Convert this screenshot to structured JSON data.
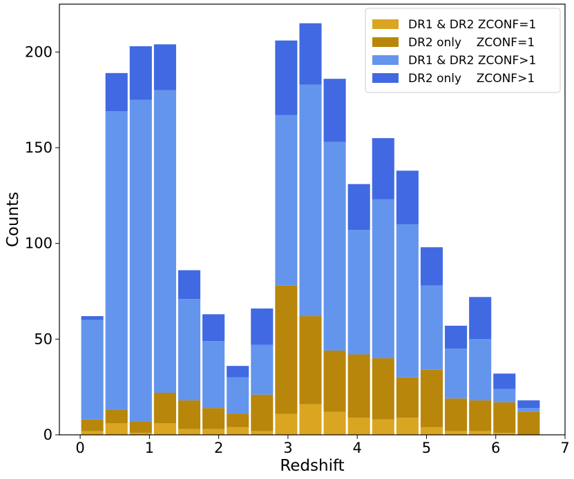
{
  "chart_data": {
    "type": "bar",
    "stacked": true,
    "xlabel": "Redshift",
    "ylabel": "Counts",
    "xlim": [
      -0.3,
      7
    ],
    "ylim": [
      0,
      225
    ],
    "xticks": [
      0,
      1,
      2,
      3,
      4,
      5,
      6,
      7
    ],
    "yticks": [
      0,
      50,
      100,
      150,
      200
    ],
    "bin_width": 0.35,
    "bin_starts": [
      0.0,
      0.35,
      0.7,
      1.05,
      1.4,
      1.75,
      2.1,
      2.45,
      2.8,
      3.15,
      3.5,
      3.85,
      4.2,
      4.55,
      4.9,
      5.25,
      5.6,
      5.95,
      6.3
    ],
    "legend_position": "top-right",
    "grid": false,
    "series": [
      {
        "name": "DR1 & DR2 ZCONF=1",
        "color": "#DAA520",
        "values": [
          2,
          6,
          1,
          6,
          3,
          3,
          4,
          2,
          11,
          16,
          12,
          9,
          8,
          9,
          4,
          2,
          2,
          1,
          0
        ]
      },
      {
        "name": "DR2 only    ZCONF=1",
        "color": "#B8860B",
        "values": [
          6,
          7,
          6,
          16,
          15,
          11,
          7,
          19,
          67,
          46,
          32,
          33,
          32,
          21,
          30,
          17,
          16,
          16,
          12
        ]
      },
      {
        "name": "DR1 & DR2 ZCONF>1",
        "color": "#6495ED",
        "values": [
          52,
          156,
          168,
          158,
          53,
          35,
          19,
          26,
          89,
          121,
          109,
          65,
          83,
          80,
          44,
          26,
          32,
          7,
          2
        ]
      },
      {
        "name": "DR2 only    ZCONF>1",
        "color": "#4169E1",
        "values": [
          2,
          20,
          28,
          24,
          15,
          14,
          6,
          19,
          39,
          32,
          33,
          24,
          32,
          28,
          20,
          12,
          22,
          8,
          4
        ]
      }
    ]
  }
}
